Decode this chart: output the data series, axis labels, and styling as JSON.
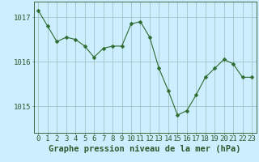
{
  "x": [
    0,
    1,
    2,
    3,
    4,
    5,
    6,
    7,
    8,
    9,
    10,
    11,
    12,
    13,
    14,
    15,
    16,
    17,
    18,
    19,
    20,
    21,
    22,
    23
  ],
  "y": [
    1017.15,
    1016.8,
    1016.45,
    1016.55,
    1016.5,
    1016.35,
    1016.1,
    1016.3,
    1016.35,
    1016.35,
    1016.85,
    1016.9,
    1016.55,
    1015.85,
    1015.35,
    1014.8,
    1014.9,
    1015.25,
    1015.65,
    1015.85,
    1016.05,
    1015.95,
    1015.65,
    1015.65
  ],
  "line_color": "#2d6a2d",
  "marker": "D",
  "marker_size": 2.5,
  "bg_color": "#cceeff",
  "grid_color": "#99bbbb",
  "xlabel": "Graphe pression niveau de la mer (hPa)",
  "xlabel_fontsize": 7.5,
  "xlabel_color": "#2d5a2d",
  "tick_color": "#2d5a2d",
  "tick_fontsize": 6.5,
  "yticks": [
    1015,
    1016,
    1017
  ],
  "ylim": [
    1014.4,
    1017.35
  ],
  "xlim": [
    -0.5,
    23.5
  ],
  "xtick_labels": [
    "0",
    "1",
    "2",
    "3",
    "4",
    "5",
    "6",
    "7",
    "8",
    "9",
    "10",
    "11",
    "12",
    "13",
    "14",
    "15",
    "16",
    "17",
    "18",
    "19",
    "20",
    "21",
    "22",
    "23"
  ]
}
